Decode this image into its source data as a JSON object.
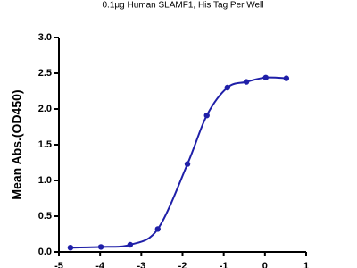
{
  "chart_data": {
    "type": "line",
    "title": "0.1μg Human SLAMF1, His Tag Per Well",
    "y_label": "Mean Abs.(OD450)",
    "series": [
      {
        "color": "#1f1fa8",
        "x": [
          -4.72,
          -3.98,
          -3.27,
          -2.6,
          -1.88,
          -1.41,
          -0.91,
          -0.45,
          0.02,
          0.52
        ],
        "values": [
          0.06,
          0.07,
          0.1,
          0.32,
          1.23,
          1.91,
          2.3,
          2.38,
          2.44,
          2.43
        ]
      }
    ],
    "xlim": [
      -5,
      1
    ],
    "xticks": [
      -5,
      -4,
      -3,
      -2,
      -1,
      0,
      1
    ],
    "ylim": [
      0,
      3
    ],
    "yticks": [
      {
        "value": 0,
        "label": "0.0"
      },
      {
        "value": 0.5,
        "label": "0.5"
      },
      {
        "value": 1,
        "label": "1.0"
      },
      {
        "value": 1.5,
        "label": "1.5"
      },
      {
        "value": 2,
        "label": "2.0"
      },
      {
        "value": 2.5,
        "label": "2.5"
      },
      {
        "value": 3,
        "label": "3.0"
      }
    ]
  }
}
